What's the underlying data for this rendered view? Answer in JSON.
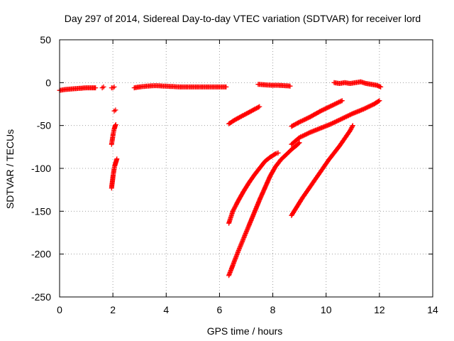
{
  "chart_data": {
    "type": "scatter",
    "title": "Day 297 of 2014, Sidereal Day-to-day VTEC variation (SDTVAR) for receiver lord",
    "xlabel": "GPS time / hours",
    "ylabel": "SDTVAR / TECUs",
    "xlim": [
      0,
      14
    ],
    "ylim": [
      -250,
      50
    ],
    "xticks": [
      0,
      2,
      4,
      6,
      8,
      10,
      12,
      14
    ],
    "yticks": [
      -250,
      -200,
      -150,
      -100,
      -50,
      0,
      50
    ],
    "xtick_labels": [
      "0",
      "2",
      "4",
      "6",
      "8",
      "10",
      "12",
      "14"
    ],
    "ytick_labels": [
      "-250",
      "-200",
      "-150",
      "-100",
      "-50",
      "0",
      "50"
    ],
    "grid": true,
    "marker": "+",
    "color": "#ff0000",
    "segments": [
      {
        "x": [
          0.0,
          0.2,
          0.4,
          0.6,
          0.8,
          1.0,
          1.2,
          1.35
        ],
        "y": [
          -9,
          -8,
          -7.5,
          -7,
          -6.5,
          -6,
          -6,
          -6
        ]
      },
      {
        "x": [
          1.6,
          1.65
        ],
        "y": [
          -6,
          -5
        ]
      },
      {
        "x": [
          1.95,
          2.0,
          2.05
        ],
        "y": [
          -6,
          -6,
          -5
        ]
      },
      {
        "x": [
          2.05,
          2.1
        ],
        "y": [
          -33,
          -32
        ]
      },
      {
        "x": [
          1.95,
          1.97,
          1.99,
          2.01,
          2.03,
          2.05,
          2.07,
          2.09,
          2.11
        ],
        "y": [
          -72,
          -68,
          -64,
          -60,
          -57,
          -54,
          -52,
          -50,
          -49
        ]
      },
      {
        "x": [
          1.95,
          1.97,
          1.99,
          2.01,
          2.03,
          2.05,
          2.07,
          2.09,
          2.11,
          2.13,
          2.15
        ],
        "y": [
          -123,
          -118,
          -113,
          -108,
          -104,
          -100,
          -97,
          -95,
          -93,
          -91,
          -89
        ]
      },
      {
        "x": [
          2.8,
          3.0,
          3.3,
          3.6,
          3.9,
          4.2,
          4.5,
          4.8,
          5.1,
          5.4,
          5.7,
          6.0,
          6.25
        ],
        "y": [
          -6,
          -5,
          -4,
          -3.5,
          -4,
          -4.5,
          -5,
          -5,
          -5,
          -5,
          -5,
          -5,
          -5
        ]
      },
      {
        "x": [
          6.35,
          6.6,
          6.9,
          7.2,
          7.5
        ],
        "y": [
          -48,
          -43,
          -38,
          -33,
          -28
        ]
      },
      {
        "x": [
          6.35,
          6.5,
          6.7,
          6.9,
          7.1,
          7.3,
          7.5,
          7.7,
          7.9,
          8.1,
          8.2
        ],
        "y": [
          -164,
          -150,
          -138,
          -127,
          -117,
          -108,
          -100,
          -92,
          -87,
          -83,
          -82
        ]
      },
      {
        "x": [
          6.35,
          6.5,
          6.7,
          6.9,
          7.1,
          7.3,
          7.5,
          7.7,
          7.9,
          8.1,
          8.3,
          8.5,
          8.7,
          8.9,
          9.0
        ],
        "y": [
          -225,
          -213,
          -197,
          -182,
          -167,
          -152,
          -137,
          -123,
          -109,
          -98,
          -90,
          -84,
          -78,
          -73,
          -70
        ]
      },
      {
        "x": [
          7.45,
          7.7,
          7.95,
          8.2,
          8.45,
          8.65
        ],
        "y": [
          -2,
          -2.5,
          -3,
          -3,
          -3.5,
          -4
        ]
      },
      {
        "x": [
          8.7,
          9.0,
          9.4,
          9.8,
          10.2,
          10.6
        ],
        "y": [
          -51,
          -46,
          -40,
          -33,
          -27,
          -21
        ]
      },
      {
        "x": [
          8.7,
          9.0,
          9.4,
          9.8,
          10.2,
          10.6,
          11.0,
          11.4,
          11.8,
          12.0
        ],
        "y": [
          -72,
          -64,
          -58,
          -53,
          -48,
          -42,
          -36,
          -31,
          -25,
          -21
        ]
      },
      {
        "x": [
          8.7,
          8.9,
          9.1,
          9.3,
          9.5,
          9.7,
          9.9,
          10.1,
          10.3,
          10.5,
          10.7,
          10.9,
          11.0
        ],
        "y": [
          -155,
          -145,
          -135,
          -126,
          -117,
          -108,
          -99,
          -90,
          -82,
          -74,
          -65,
          -56,
          -50
        ]
      },
      {
        "x": [
          10.3,
          10.5,
          10.7,
          10.9,
          11.1,
          11.3,
          11.5,
          11.7,
          11.9,
          12.05
        ],
        "y": [
          0,
          -1,
          0,
          -1,
          0,
          1,
          -1,
          -2,
          -3,
          -5
        ]
      }
    ]
  }
}
